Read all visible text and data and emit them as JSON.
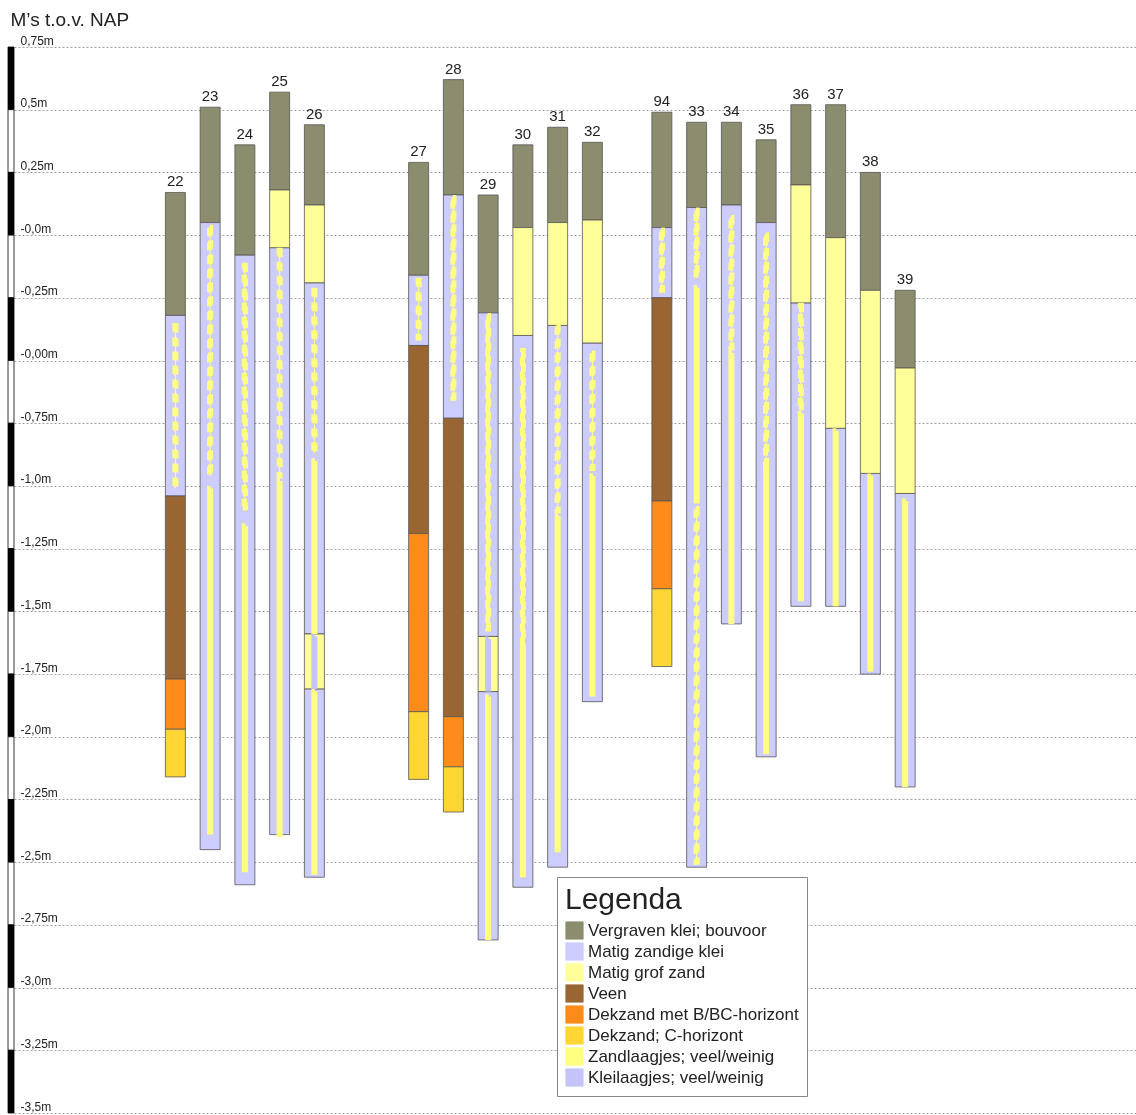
{
  "chart_data": {
    "type": "bar",
    "ylabel": "M’s t.o.v. NAP",
    "legend_title": "Legenda",
    "legend": "bottom",
    "grid": "y",
    "categories": [
      null,
      null,
      null,
      null,
      "22",
      "23",
      "24",
      "25",
      "26",
      null,
      null,
      "27",
      "28",
      "29",
      "30",
      "31",
      "32",
      null,
      "94",
      "33",
      "34",
      "35",
      "36",
      "37",
      "38",
      "39",
      null,
      null,
      null,
      null,
      null,
      null
    ],
    "ylim": [
      -3.5,
      0.75
    ],
    "yticks": [
      {
        "value": 0.75,
        "label": "0,75m"
      },
      {
        "value": 0.5,
        "label": "0,5m"
      },
      {
        "value": 0.25,
        "label": "0,25m"
      },
      {
        "value": 0,
        "label": "-0,0m"
      },
      {
        "value": -0.25,
        "label": "-0,25m"
      },
      {
        "value": -0.5,
        "label": "-0,00m"
      },
      {
        "value": -0.75,
        "label": "-0,75m"
      },
      {
        "value": -1,
        "label": "-1,0m"
      },
      {
        "value": -1.25,
        "label": "-1,25m"
      },
      {
        "value": -1.5,
        "label": "-1,5m"
      },
      {
        "value": -1.75,
        "label": "-1,75m"
      },
      {
        "value": -2,
        "label": "-2,0m"
      },
      {
        "value": -2.25,
        "label": "-2,25m"
      },
      {
        "value": -2.5,
        "label": "-2,5m"
      },
      {
        "value": -2.75,
        "label": "-2,75m"
      },
      {
        "value": -3,
        "label": "-3,0m"
      },
      {
        "value": -3.25,
        "label": "-3,25m"
      },
      {
        "value": -3.5,
        "label": "-3,5m"
      }
    ],
    "series": [
      {
        "name": "Vergraven klei; bouvoor",
        "color": "#8c8c6e",
        "values": [
          null,
          null,
          null,
          null,
          0.49,
          0.46,
          0.44,
          0.39,
          0.32,
          null,
          null,
          0.45,
          0.46,
          0.47,
          0.33,
          0.38,
          0.31,
          null,
          0.46,
          0.34,
          0.33,
          0.33,
          0.32,
          0.53,
          0.47,
          0.31,
          null,
          null,
          null,
          null,
          null,
          null
        ],
        "base": [
          null,
          null,
          null,
          null,
          -0.32,
          0.05,
          -0.08,
          0.18,
          0.12,
          null,
          null,
          -0.16,
          0.16,
          -0.31,
          0.03,
          0.05,
          0.06,
          null,
          0.03,
          0.11,
          0.12,
          0.05,
          0.2,
          -0.01,
          -0.22,
          -0.53,
          null,
          null,
          null,
          null,
          null,
          null
        ]
      },
      {
        "name": "Matig zandige klei",
        "color": "#ccccff",
        "values": [
          null,
          null,
          null,
          null,
          0.72,
          2.5,
          2.51,
          2.34,
          1.4,
          null,
          null,
          0.28,
          0.89,
          1.29,
          2.2,
          2.16,
          1.43,
          null,
          0.28,
          2.63,
          1.67,
          2.13,
          1.21,
          0.71,
          0.8,
          1.17,
          null,
          null,
          null,
          null,
          null,
          null
        ],
        "base": [
          null,
          null,
          null,
          null,
          -1.04,
          -2.45,
          -2.59,
          -2.39,
          -1.59,
          null,
          null,
          -0.44,
          -0.73,
          -1.6,
          -2.6,
          -2.52,
          -1.86,
          null,
          -0.25,
          -2.52,
          -1.55,
          -2.08,
          -1.48,
          -1.48,
          -1.75,
          -2.2,
          null,
          null,
          null,
          null,
          null,
          null
        ]
      },
      {
        "name": "Matig grof zand",
        "color": "#ffff99",
        "values": [
          null,
          null,
          null,
          null,
          null,
          null,
          null,
          0.23,
          0.31,
          null,
          null,
          null,
          null,
          null,
          0.43,
          0.41,
          0.49,
          null,
          null,
          null,
          null,
          null,
          0.47,
          0.76,
          0.73,
          0.5,
          null,
          null,
          null,
          null,
          null,
          null
        ],
        "base": [
          null,
          null,
          null,
          null,
          null,
          null,
          null,
          -0.05,
          -0.19,
          null,
          null,
          null,
          null,
          null,
          -0.4,
          -0.36,
          -0.43,
          null,
          null,
          null,
          null,
          null,
          -0.27,
          -0.77,
          -0.95,
          -1.03,
          null,
          null,
          null,
          null,
          null,
          null
        ]
      },
      {
        "name": "Veen",
        "color": "#996633",
        "values": [
          null,
          null,
          null,
          null,
          0.73,
          null,
          null,
          null,
          null,
          null,
          null,
          0.75,
          1.19,
          null,
          null,
          null,
          null,
          null,
          0.81,
          null,
          null,
          null,
          null,
          null,
          null,
          null,
          null,
          null,
          null,
          null,
          null,
          null
        ],
        "base": [
          null,
          null,
          null,
          null,
          -1.77,
          null,
          null,
          null,
          null,
          null,
          null,
          -1.19,
          -1.92,
          null,
          null,
          null,
          null,
          null,
          -1.06,
          null,
          null,
          null,
          null,
          null,
          null,
          null,
          null,
          null,
          null,
          null,
          null,
          null
        ]
      },
      {
        "name": "Dekzand met B/BC-horizont",
        "color": "#ff8c1a",
        "values": [
          null,
          null,
          null,
          null,
          0.2,
          null,
          null,
          null,
          null,
          null,
          null,
          0.71,
          0.2,
          null,
          null,
          null,
          null,
          null,
          0.35,
          null,
          null,
          null,
          null,
          null,
          null,
          null,
          null,
          null,
          null,
          null,
          null,
          null
        ],
        "base": [
          null,
          null,
          null,
          null,
          -1.97,
          null,
          null,
          null,
          null,
          null,
          null,
          -1.9,
          -2.12,
          null,
          null,
          null,
          null,
          null,
          -1.41,
          null,
          null,
          null,
          null,
          null,
          null,
          null,
          null,
          null,
          null,
          null,
          null,
          null
        ]
      },
      {
        "name": "Dekzand; C-horizont",
        "color": "#ffd633",
        "values": [
          null,
          null,
          null,
          null,
          0.19,
          null,
          null,
          null,
          null,
          null,
          null,
          0.27,
          0.18,
          null,
          null,
          null,
          null,
          null,
          0.31,
          null,
          null,
          null,
          null,
          null,
          null,
          null,
          null,
          null,
          null,
          null,
          null,
          null
        ],
        "base": [
          null,
          null,
          null,
          null,
          -2.16,
          null,
          null,
          null,
          null,
          null,
          null,
          -2.17,
          -2.3,
          null,
          null,
          null,
          null,
          null,
          -1.72,
          null,
          null,
          null,
          null,
          null,
          null,
          null,
          null,
          null,
          null,
          null,
          null,
          null
        ]
      },
      {
        "name": "Zandlaagjes; veel/weinig",
        "color": "#ffff80",
        "line_style": "solid",
        "values": [
          null,
          null,
          null,
          null,
          null,
          1.37,
          1.37,
          1.41,
          0.68,
          null,
          null,
          null,
          null,
          0.96,
          0.91,
          1.33,
          0.87,
          null,
          null,
          0.85,
          1.07,
          1.14,
          0.74,
          0.69,
          0.77,
          1.13,
          null,
          null,
          null,
          null,
          null,
          null
        ],
        "base": [
          null,
          null,
          null,
          null,
          null,
          -2.38,
          -2.53,
          -2.39,
          -1.58,
          null,
          null,
          null,
          null,
          -2.8,
          -2.55,
          -2.45,
          -1.83,
          null,
          null,
          -1.06,
          -1.54,
          -2.06,
          -1.45,
          -1.47,
          -1.73,
          -2.19,
          null,
          null,
          null,
          null,
          null,
          null
        ]
      },
      {
        "name": "Kleilaagjes; veel/weinig",
        "color": "#c4c4fa",
        "line_style": "solid",
        "values": [
          null,
          null,
          null,
          null,
          null,
          null,
          null,
          null,
          0.2,
          null,
          null,
          null,
          null,
          0.2,
          null,
          null,
          null,
          null,
          null,
          null,
          null,
          null,
          null,
          null,
          null,
          null,
          null,
          null,
          null,
          null,
          null,
          null
        ],
        "base": [
          null,
          null,
          null,
          null,
          null,
          null,
          null,
          null,
          -1.8,
          null,
          null,
          null,
          null,
          -1.81,
          null,
          null,
          null,
          null,
          null,
          null,
          null,
          null,
          null,
          null,
          null,
          null,
          null,
          null,
          null,
          null,
          null,
          null
        ]
      },
      {
        "color": "#ffff99",
        "values": [
          null,
          null,
          null,
          null,
          null,
          null,
          null,
          null,
          0.22,
          null,
          null,
          null,
          null,
          0.22,
          null,
          null,
          null,
          null,
          null,
          null,
          null,
          null,
          null,
          null,
          null,
          null,
          null,
          null,
          null,
          null,
          null,
          null
        ],
        "base": [
          null,
          null,
          null,
          null,
          null,
          null,
          null,
          null,
          -1.81,
          null,
          null,
          null,
          null,
          -1.82,
          null,
          null,
          null,
          null,
          null,
          null,
          null,
          null,
          null,
          null,
          null,
          null,
          null,
          null,
          null,
          null,
          null,
          null
        ]
      },
      {
        "color": "#ccccff",
        "values": [
          null,
          null,
          null,
          null,
          null,
          null,
          null,
          null,
          0.75,
          null,
          null,
          null,
          null,
          0.99,
          null,
          null,
          null,
          null,
          null,
          null,
          null,
          null,
          null,
          null,
          null,
          null,
          null,
          null,
          null,
          null,
          null,
          null
        ],
        "base": [
          null,
          null,
          null,
          null,
          null,
          null,
          null,
          null,
          -2.56,
          null,
          null,
          null,
          null,
          -2.81,
          null,
          null,
          null,
          null,
          null,
          null,
          null,
          null,
          null,
          null,
          null,
          null,
          null,
          null,
          null,
          null,
          null,
          null
        ]
      },
      {
        "color": "#ffff80",
        "line_style": "solid",
        "values": [
          null,
          null,
          null,
          null,
          null,
          null,
          null,
          null,
          0.72,
          null,
          null,
          null,
          null,
          null,
          null,
          null,
          null,
          null,
          null,
          null,
          null,
          null,
          null,
          null,
          null,
          null,
          null,
          null,
          null,
          null,
          null,
          null
        ],
        "base": [
          null,
          null,
          null,
          null,
          null,
          null,
          null,
          null,
          -2.54,
          null,
          null,
          null,
          null,
          null,
          null,
          null,
          null,
          null,
          null,
          null,
          null,
          null,
          null,
          null,
          null,
          null,
          null,
          null,
          null,
          null,
          null,
          null
        ]
      },
      {
        "color": "#ffff80",
        "line_style": "dashed",
        "values": [
          null,
          null,
          null,
          null,
          0.65,
          0.99,
          0.98,
          0.9,
          0.65,
          null,
          null,
          0.23,
          0.8,
          1.25,
          1.17,
          0.74,
          0.46,
          null,
          0.24,
          0.27,
          0.52,
          0.91,
          0.42,
          null,
          null,
          null,
          null,
          null,
          null,
          null,
          null,
          null
        ],
        "base": [
          null,
          null,
          null,
          null,
          -1.01,
          -0.96,
          -1.1,
          -0.96,
          -0.87,
          null,
          null,
          -0.41,
          -0.65,
          -1.57,
          -1.63,
          -1.1,
          -0.93,
          null,
          -0.22,
          -0.17,
          -0.45,
          -0.91,
          -0.7,
          null,
          null,
          null,
          null,
          null,
          null,
          null,
          null,
          null
        ]
      },
      {
        "color": "#ffff80",
        "line_style": "dashed",
        "values": [
          null,
          null,
          null,
          null,
          null,
          null,
          null,
          null,
          null,
          null,
          null,
          null,
          null,
          null,
          null,
          null,
          null,
          null,
          null,
          1.41,
          null,
          null,
          null,
          null,
          null,
          null,
          null,
          null,
          null,
          null,
          null,
          null
        ],
        "base": [
          null,
          null,
          null,
          null,
          null,
          null,
          null,
          null,
          null,
          null,
          null,
          null,
          null,
          null,
          null,
          null,
          null,
          null,
          null,
          -2.5,
          null,
          null,
          null,
          null,
          null,
          null,
          null,
          null,
          null,
          null,
          null,
          null
        ]
      }
    ]
  }
}
